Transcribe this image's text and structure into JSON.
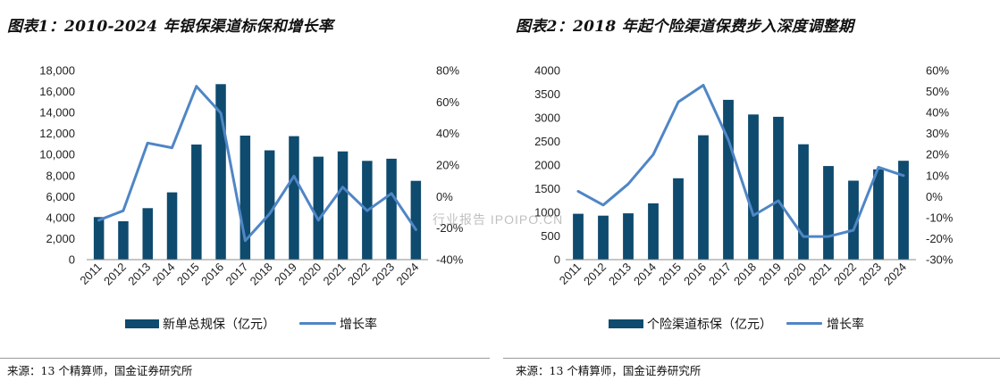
{
  "watermark": {
    "text": "行业报告 IPOIPO.CN"
  },
  "chart_data": [
    {
      "type": "bar",
      "title": "图表1：2010-2024 年银保渠道标保和增长率",
      "categories": [
        "2011",
        "2012",
        "2013",
        "2014",
        "2015",
        "2016",
        "2017",
        "2018",
        "2019",
        "2020",
        "2021",
        "2022",
        "2023",
        "2024"
      ],
      "series": [
        {
          "name": "新单总规保（亿元）",
          "type": "bar",
          "axis": "left",
          "color": "#0e4b6e",
          "values": [
            4050,
            3650,
            4900,
            6400,
            10950,
            16700,
            11800,
            10400,
            11750,
            9800,
            10300,
            9400,
            9600,
            7500
          ]
        },
        {
          "name": "增长率",
          "type": "line",
          "axis": "right",
          "color": "#4f86c6",
          "values": [
            -15,
            -9,
            34,
            31,
            70,
            53,
            -28,
            -11,
            13,
            -15,
            6,
            -9,
            2,
            -21
          ]
        }
      ],
      "y_left": {
        "min": 0,
        "max": 18000,
        "ticks": [
          "0",
          "2,000",
          "4,000",
          "6,000",
          "8,000",
          "10,000",
          "12,000",
          "14,000",
          "16,000",
          "18,000"
        ]
      },
      "y_right": {
        "min": -40,
        "max": 80,
        "ticks": [
          "-40%",
          "-20%",
          "0%",
          "20%",
          "40%",
          "60%",
          "80%"
        ]
      },
      "grid": false,
      "legend": "bottom",
      "source": "来源：13 个精算师，国金证券研究所"
    },
    {
      "type": "bar",
      "title": "图表2：2018 年起个险渠道保费步入深度调整期",
      "categories": [
        "2011",
        "2012",
        "2013",
        "2014",
        "2015",
        "2016",
        "2017",
        "2018",
        "2019",
        "2020",
        "2021",
        "2022",
        "2023",
        "2024"
      ],
      "series": [
        {
          "name": "个险渠道标保（亿元）",
          "type": "bar",
          "axis": "left",
          "color": "#0e4b6e",
          "values": [
            970,
            930,
            980,
            1190,
            1720,
            2630,
            3380,
            3070,
            3020,
            2440,
            1980,
            1670,
            1910,
            2090
          ]
        },
        {
          "name": "增长率",
          "type": "line",
          "axis": "right",
          "color": "#4f86c6",
          "values": [
            2.5,
            -4,
            6,
            20,
            45,
            53,
            27,
            -9,
            -2,
            -19,
            -19,
            -16,
            14,
            10
          ]
        }
      ],
      "y_left": {
        "min": 0,
        "max": 4000,
        "ticks": [
          "0",
          "500",
          "1000",
          "1500",
          "2000",
          "2500",
          "3000",
          "3500",
          "4000"
        ]
      },
      "y_right": {
        "min": -30,
        "max": 60,
        "ticks": [
          "-30%",
          "-20%",
          "-10%",
          "0%",
          "10%",
          "20%",
          "30%",
          "40%",
          "50%",
          "60%"
        ]
      },
      "grid": false,
      "legend": "bottom",
      "source": "来源：13 个精算师，国金证券研究所"
    }
  ]
}
